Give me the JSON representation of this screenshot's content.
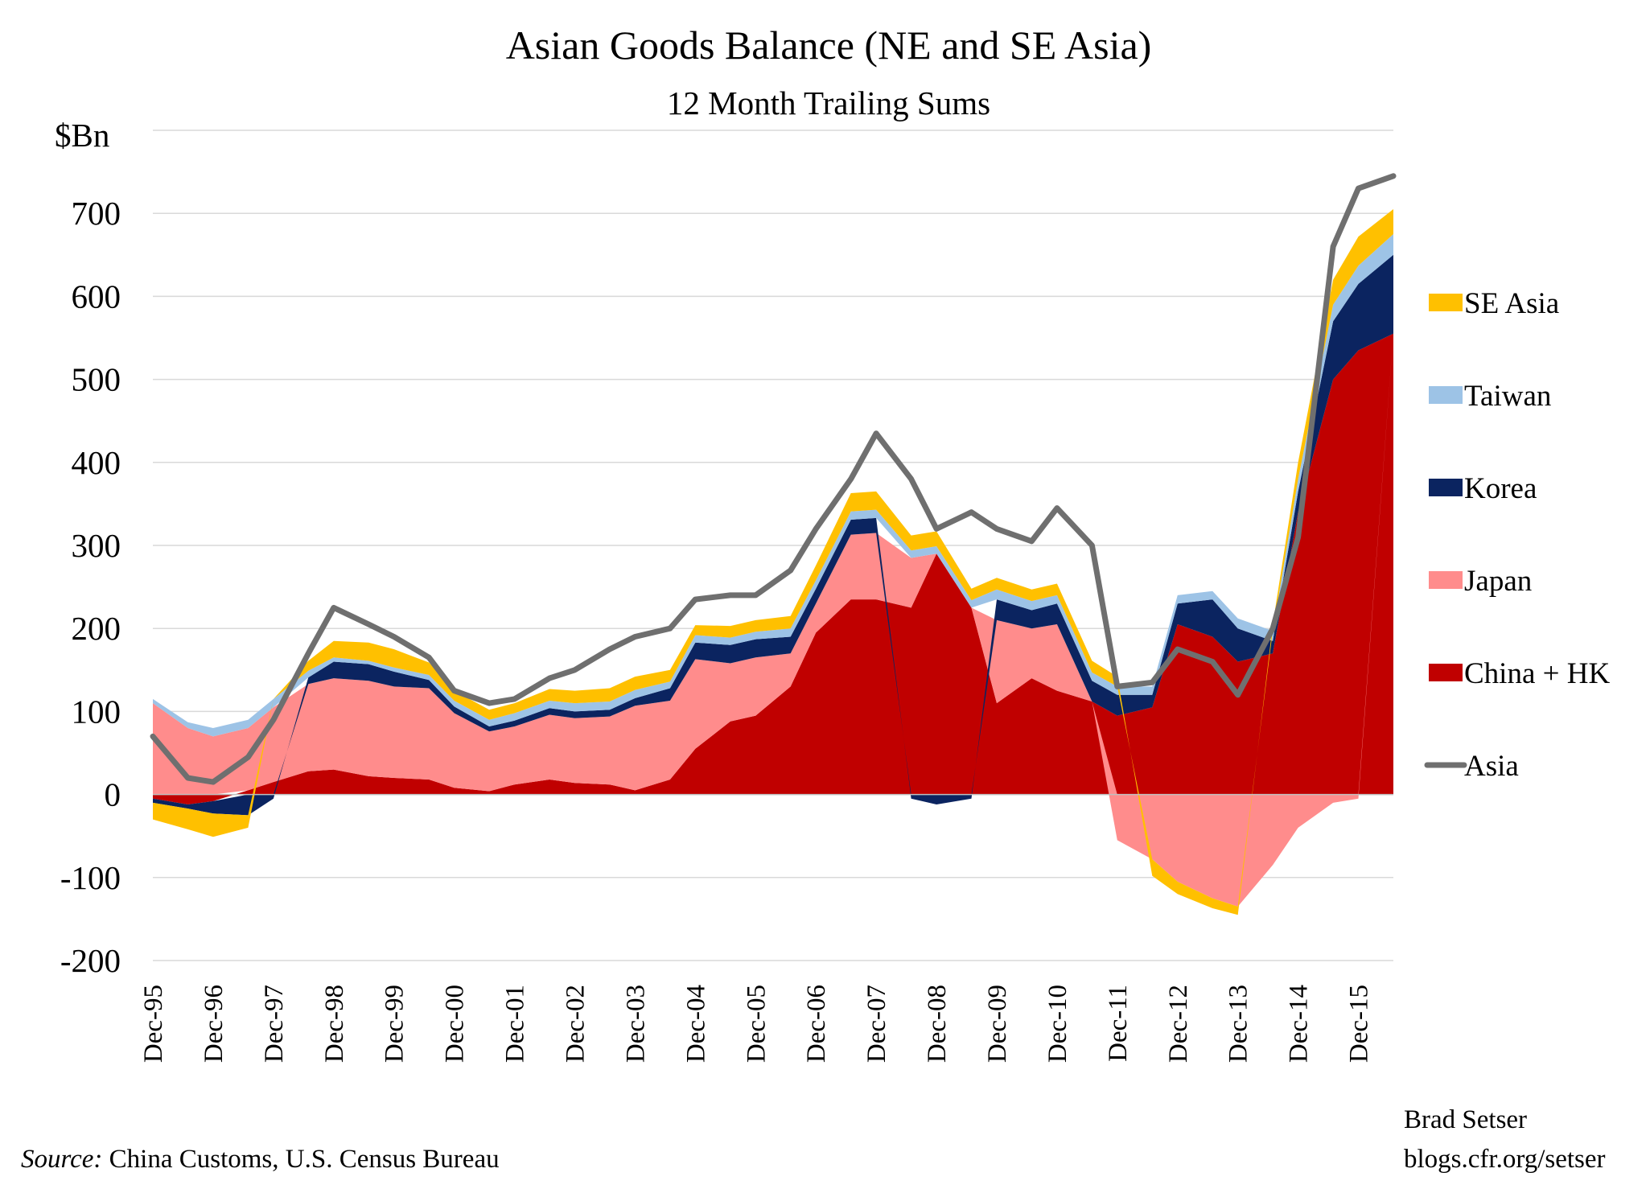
{
  "chart_data": {
    "type": "area",
    "title": "Asian Goods Balance (NE and SE Asia)",
    "subtitle": "12 Month Trailing Sums",
    "ylabel": "$Bn",
    "ylim": [
      -200,
      800
    ],
    "y_ticks": [
      "700",
      "600",
      "500",
      "400",
      "300",
      "200",
      "100",
      "0",
      "-100",
      "-200"
    ],
    "x_ticks": [
      "Dec-95",
      "Dec-96",
      "Dec-97",
      "Dec-98",
      "Dec-99",
      "Dec-00",
      "Dec-01",
      "Dec-02",
      "Dec-03",
      "Dec-04",
      "Dec-05",
      "Dec-06",
      "Dec-07",
      "Dec-08",
      "Dec-09",
      "Dec-10",
      "Dec-11",
      "Dec-12",
      "Dec-13",
      "Dec-14",
      "Dec-15"
    ],
    "x": [
      1995.92,
      1996.5,
      1996.92,
      1997.5,
      1997.92,
      1998.5,
      1998.92,
      1999.5,
      1999.92,
      2000.5,
      2000.92,
      2001.5,
      2001.92,
      2002.5,
      2002.92,
      2003.5,
      2003.92,
      2004.5,
      2004.92,
      2005.5,
      2005.92,
      2006.5,
      2006.92,
      2007.5,
      2007.92,
      2008.5,
      2008.92,
      2009.5,
      2009.92,
      2010.5,
      2010.92,
      2011.5,
      2011.92,
      2012.5,
      2012.92,
      2013.5,
      2013.92,
      2014.5,
      2014.92,
      2015.5,
      2015.92,
      2016.5
    ],
    "series": [
      {
        "name": "China + HK",
        "color": "#c00000",
        "values": [
          -5,
          -12,
          -8,
          5,
          15,
          28,
          30,
          22,
          20,
          18,
          8,
          4,
          12,
          18,
          14,
          12,
          5,
          18,
          55,
          88,
          95,
          130,
          195,
          235,
          235,
          225,
          290,
          225,
          110,
          140,
          125,
          112,
          95,
          105,
          205,
          190,
          160,
          170,
          340,
          500,
          535,
          555
        ]
      },
      {
        "name": "Japan",
        "color": "#ff8c8c",
        "values": [
          110,
          80,
          70,
          75,
          90,
          105,
          110,
          115,
          110,
          110,
          90,
          72,
          70,
          78,
          78,
          82,
          102,
          95,
          108,
          70,
          70,
          40,
          35,
          78,
          80,
          60,
          0,
          0,
          100,
          60,
          80,
          0,
          -55,
          -78,
          -105,
          -125,
          -135,
          -85,
          -40,
          -10,
          -5,
          0
        ]
      },
      {
        "name": "Korea",
        "color": "#0b2460",
        "values": [
          -5,
          -5,
          -15,
          -25,
          -5,
          8,
          20,
          20,
          18,
          10,
          8,
          6,
          7,
          8,
          8,
          8,
          9,
          15,
          20,
          22,
          22,
          20,
          18,
          18,
          18,
          -5,
          -12,
          -5,
          25,
          22,
          25,
          25,
          25,
          15,
          25,
          45,
          40,
          15,
          25,
          70,
          80,
          95
        ]
      },
      {
        "name": "Taiwan",
        "color": "#9dc3e6",
        "values": [
          5,
          7,
          10,
          10,
          10,
          8,
          5,
          4,
          5,
          6,
          7,
          8,
          9,
          9,
          10,
          10,
          10,
          8,
          9,
          9,
          9,
          10,
          10,
          10,
          10,
          9,
          9,
          9,
          12,
          11,
          10,
          10,
          10,
          10,
          10,
          10,
          12,
          12,
          15,
          20,
          22,
          25
        ]
      },
      {
        "name": "SE Asia",
        "color": "#ffc000",
        "values": [
          -20,
          -25,
          -28,
          -15,
          0,
          12,
          20,
          22,
          22,
          15,
          12,
          12,
          12,
          14,
          15,
          16,
          16,
          14,
          12,
          14,
          14,
          15,
          18,
          22,
          22,
          18,
          18,
          14,
          14,
          14,
          14,
          14,
          12,
          -20,
          -15,
          -12,
          -10,
          8,
          20,
          30,
          35,
          30
        ]
      },
      {
        "name": "Asia",
        "color": "#6f6f6f",
        "values": [
          70,
          20,
          15,
          45,
          90,
          170,
          225,
          205,
          190,
          165,
          125,
          110,
          115,
          140,
          150,
          175,
          190,
          200,
          235,
          240,
          240,
          270,
          320,
          380,
          435,
          380,
          320,
          340,
          320,
          305,
          345,
          300,
          130,
          135,
          175,
          160,
          120,
          200,
          310,
          660,
          730,
          745
        ]
      }
    ]
  },
  "footer": {
    "source_label": "Source:",
    "source_text": " China Customs, U.S. Census Bureau",
    "credit_name": "Brad Setser",
    "credit_url": "blogs.cfr.org/setser"
  }
}
